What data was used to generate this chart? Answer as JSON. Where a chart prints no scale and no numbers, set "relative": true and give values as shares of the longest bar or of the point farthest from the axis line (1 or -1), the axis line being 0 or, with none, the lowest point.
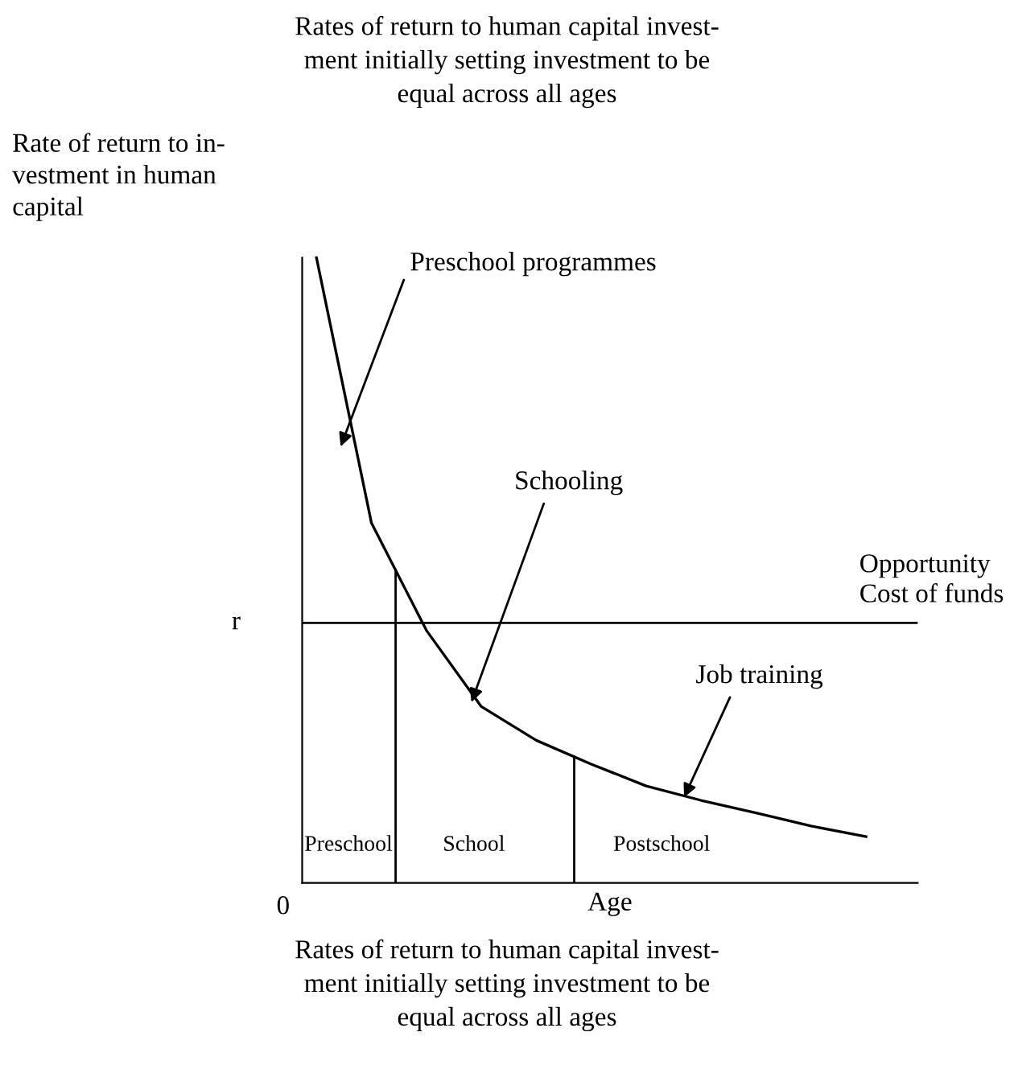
{
  "chart_data": {
    "type": "line",
    "relative": true,
    "title": "Rates of return to human capital invest-\nment initially setting investment to be\nequal across all ages",
    "ylabel": "Rate of return to in-\nvestment in human\ncapital",
    "xlabel": "Age",
    "categories": [
      null,
      null,
      null,
      null,
      null,
      null,
      null,
      null,
      null,
      null,
      null
    ],
    "series": [
      {
        "color": "#000000",
        "values": [
          1.0,
          0.576,
          0.404,
          0.282,
          0.228,
          0.19,
          0.155,
          0.132,
          0.112,
          0.091,
          0.074
        ]
      }
    ],
    "ref_lines": [
      {
        "axis": "y",
        "value": 0.416,
        "label": "r",
        "color": "#000000"
      }
    ],
    "annotations": [
      "Preschool programmes",
      "Schooling",
      "Job training",
      "Opportunity\nCost of funds",
      "0",
      "Rates of return to human capital invest-\nment initially setting investment to be\nequal across all ages",
      "Preschool",
      "School",
      "Postschool"
    ]
  }
}
